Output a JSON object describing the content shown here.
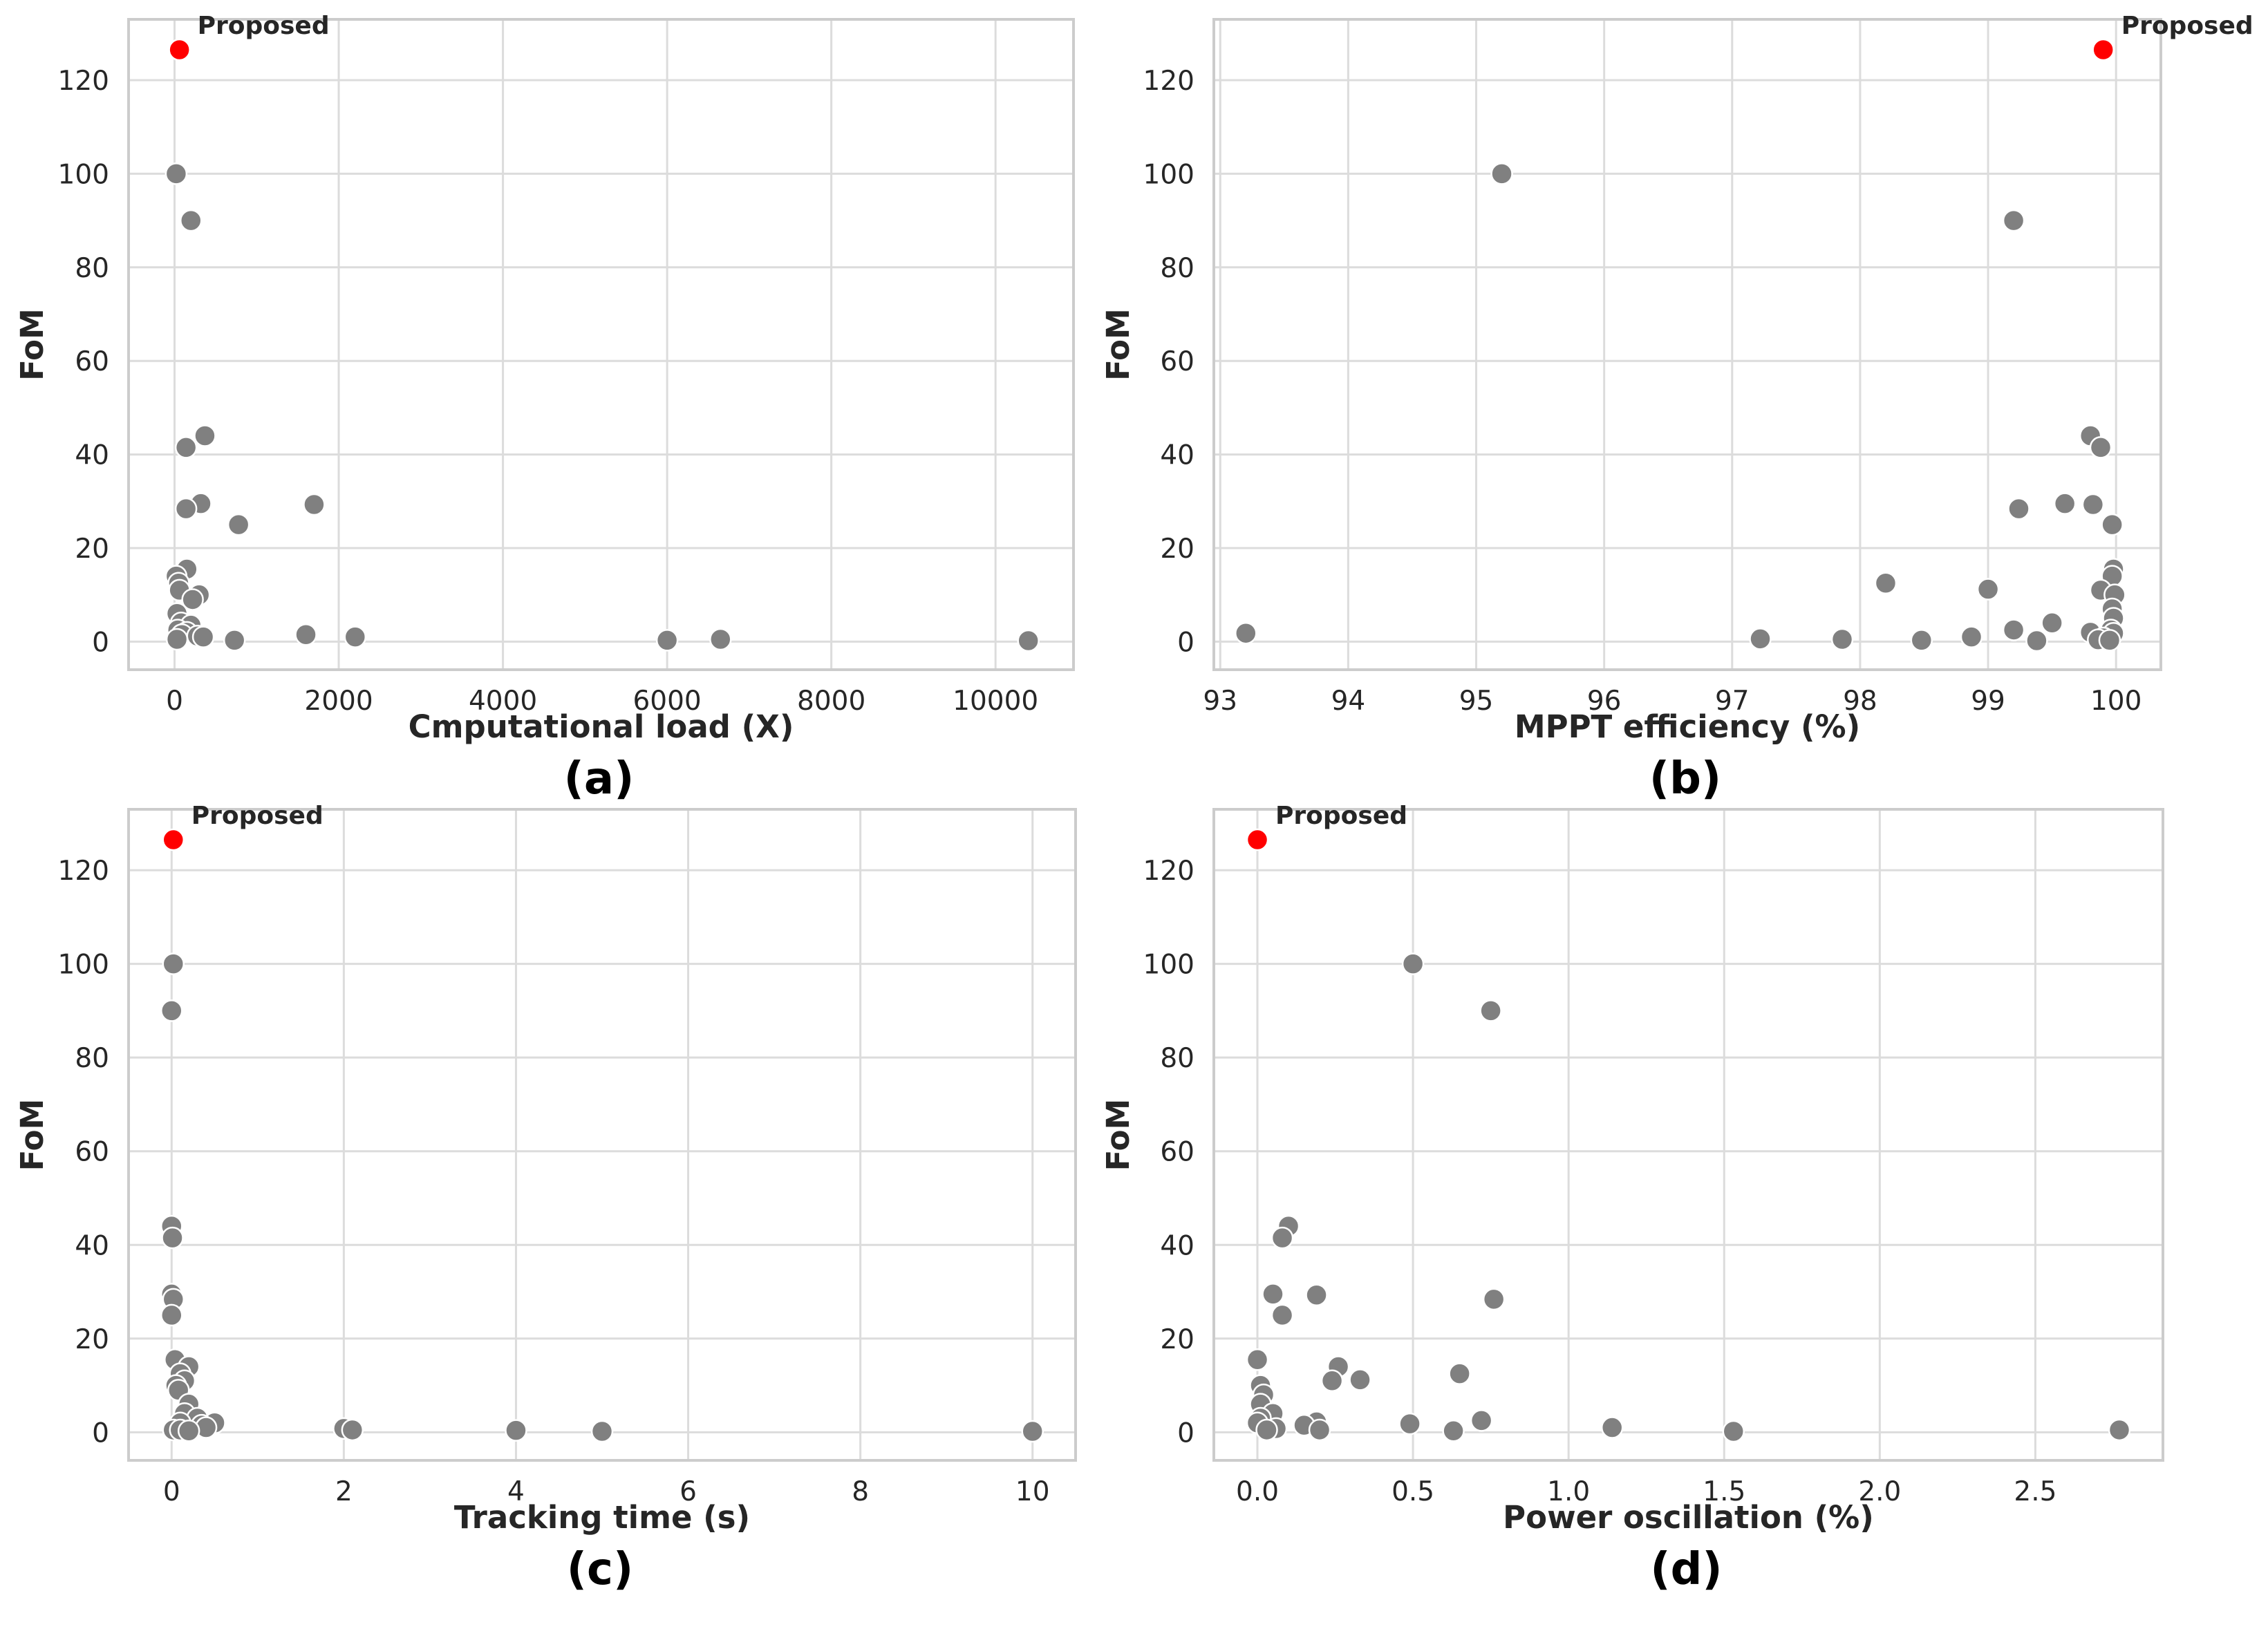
{
  "chart_data": [
    {
      "type": "scatter",
      "id": "a",
      "panel_label": "(a)",
      "xlabel": "Cmputational load (X)",
      "ylabel": "FoM",
      "xlim": [
        -560,
        10950
      ],
      "ylim": [
        -6,
        133
      ],
      "xticks": [
        0,
        2000,
        4000,
        6000,
        8000,
        10000
      ],
      "yticks": [
        0,
        20,
        40,
        60,
        80,
        100,
        120
      ],
      "highlight": {
        "name": "Proposed",
        "x": 60,
        "y": 126.5,
        "color": "#ff0000"
      },
      "point_color": "#808080",
      "points": [
        [
          20,
          100
        ],
        [
          200,
          90
        ],
        [
          370,
          44
        ],
        [
          140,
          41.5
        ],
        [
          320,
          29.5
        ],
        [
          1700,
          29.3
        ],
        [
          140,
          28.4
        ],
        [
          780,
          25
        ],
        [
          150,
          15.5
        ],
        [
          20,
          14
        ],
        [
          50,
          12.5
        ],
        [
          60,
          11
        ],
        [
          300,
          10
        ],
        [
          220,
          9
        ],
        [
          30,
          6
        ],
        [
          80,
          4
        ],
        [
          200,
          3.5
        ],
        [
          40,
          2.5
        ],
        [
          150,
          2
        ],
        [
          90,
          1.5
        ],
        [
          1600,
          1.5
        ],
        [
          280,
          1.2
        ],
        [
          350,
          1
        ],
        [
          2200,
          1
        ],
        [
          30,
          0.5
        ],
        [
          730,
          0.3
        ],
        [
          6000,
          0.3
        ],
        [
          6650,
          0.5
        ],
        [
          10400,
          0.2
        ]
      ]
    },
    {
      "type": "scatter",
      "id": "b",
      "panel_label": "(b)",
      "xlabel": "MPPT efficiency (%)",
      "ylabel": "FoM",
      "xlim": [
        92.95,
        100.35
      ],
      "ylim": [
        -6,
        133
      ],
      "xticks": [
        93,
        94,
        95,
        96,
        97,
        98,
        99,
        100
      ],
      "yticks": [
        0,
        20,
        40,
        60,
        80,
        100,
        120
      ],
      "highlight": {
        "name": "Proposed",
        "x": 99.9,
        "y": 126.5,
        "color": "#ff0000"
      },
      "point_color": "#808080",
      "points": [
        [
          95.2,
          100
        ],
        [
          99.2,
          90
        ],
        [
          99.8,
          44
        ],
        [
          99.88,
          41.5
        ],
        [
          99.6,
          29.5
        ],
        [
          99.82,
          29.3
        ],
        [
          99.24,
          28.4
        ],
        [
          99.97,
          25
        ],
        [
          99.98,
          15.5
        ],
        [
          99.97,
          14
        ],
        [
          98.2,
          12.5
        ],
        [
          99.88,
          11
        ],
        [
          99.0,
          11.2
        ],
        [
          99.99,
          10
        ],
        [
          99.97,
          7
        ],
        [
          99.98,
          5
        ],
        [
          99.5,
          4
        ],
        [
          99.2,
          2.5
        ],
        [
          99.96,
          2.5
        ],
        [
          99.8,
          2
        ],
        [
          99.98,
          1.8
        ],
        [
          93.2,
          1.8
        ],
        [
          98.87,
          1
        ],
        [
          99.9,
          0.8
        ],
        [
          97.22,
          0.6
        ],
        [
          97.86,
          0.5
        ],
        [
          99.86,
          0.4
        ],
        [
          98.48,
          0.3
        ],
        [
          99.38,
          0.2
        ],
        [
          99.95,
          0.3
        ]
      ]
    },
    {
      "type": "scatter",
      "id": "c",
      "panel_label": "(c)",
      "xlabel": "Tracking time (s)",
      "ylabel": "FoM",
      "xlim": [
        -0.5,
        10.5
      ],
      "ylim": [
        -6,
        133
      ],
      "xticks": [
        0,
        2,
        4,
        6,
        8,
        10
      ],
      "yticks": [
        0,
        20,
        40,
        60,
        80,
        100,
        120
      ],
      "highlight": {
        "name": "Proposed",
        "x": 0.02,
        "y": 126.5,
        "color": "#ff0000"
      },
      "point_color": "#808080",
      "points": [
        [
          0.02,
          100
        ],
        [
          0.0,
          90
        ],
        [
          0.0,
          44
        ],
        [
          0.01,
          41.5
        ],
        [
          0.0,
          29.5
        ],
        [
          0.02,
          28.4
        ],
        [
          0.0,
          25
        ],
        [
          0.04,
          15.5
        ],
        [
          0.2,
          14
        ],
        [
          0.1,
          12.5
        ],
        [
          0.15,
          11
        ],
        [
          0.05,
          10
        ],
        [
          0.08,
          9
        ],
        [
          0.2,
          6
        ],
        [
          0.15,
          4
        ],
        [
          0.3,
          3
        ],
        [
          0.5,
          2
        ],
        [
          0.35,
          1.5
        ],
        [
          0.1,
          2
        ],
        [
          0.4,
          1
        ],
        [
          0.02,
          0.5
        ],
        [
          0.1,
          0.5
        ],
        [
          0.2,
          0.3
        ],
        [
          2.0,
          0.8
        ],
        [
          2.1,
          0.5
        ],
        [
          4.0,
          0.4
        ],
        [
          5.0,
          0.2
        ],
        [
          10.0,
          0.2
        ]
      ]
    },
    {
      "type": "scatter",
      "id": "d",
      "panel_label": "(d)",
      "xlabel": "Power oscillation (%)",
      "ylabel": "FoM",
      "xlim": [
        -0.14,
        2.91
      ],
      "ylim": [
        -6,
        133
      ],
      "xticks": [
        0.0,
        0.5,
        1.0,
        1.5,
        2.0,
        2.5
      ],
      "xtick_labels": [
        "0.0",
        "0.5",
        "1.0",
        "1.5",
        "2.0",
        "2.5"
      ],
      "yticks": [
        0,
        20,
        40,
        60,
        80,
        100,
        120
      ],
      "highlight": {
        "name": "Proposed",
        "x": 0.0,
        "y": 126.5,
        "color": "#ff0000"
      },
      "point_color": "#808080",
      "points": [
        [
          0.5,
          100
        ],
        [
          0.75,
          90
        ],
        [
          0.1,
          44
        ],
        [
          0.08,
          41.5
        ],
        [
          0.05,
          29.5
        ],
        [
          0.19,
          29.3
        ],
        [
          0.76,
          28.4
        ],
        [
          0.08,
          25
        ],
        [
          0.0,
          15.5
        ],
        [
          0.26,
          14
        ],
        [
          0.65,
          12.5
        ],
        [
          0.33,
          11.2
        ],
        [
          0.24,
          11
        ],
        [
          0.01,
          10
        ],
        [
          0.02,
          8
        ],
        [
          0.01,
          6
        ],
        [
          0.05,
          4
        ],
        [
          0.01,
          3
        ],
        [
          0.72,
          2.5
        ],
        [
          0.19,
          2.2
        ],
        [
          0.0,
          2
        ],
        [
          0.49,
          1.8
        ],
        [
          0.15,
          1.5
        ],
        [
          1.14,
          1
        ],
        [
          0.06,
          0.8
        ],
        [
          0.03,
          0.5
        ],
        [
          0.2,
          0.5
        ],
        [
          0.63,
          0.3
        ],
        [
          1.53,
          0.2
        ],
        [
          2.77,
          0.5
        ]
      ]
    }
  ]
}
